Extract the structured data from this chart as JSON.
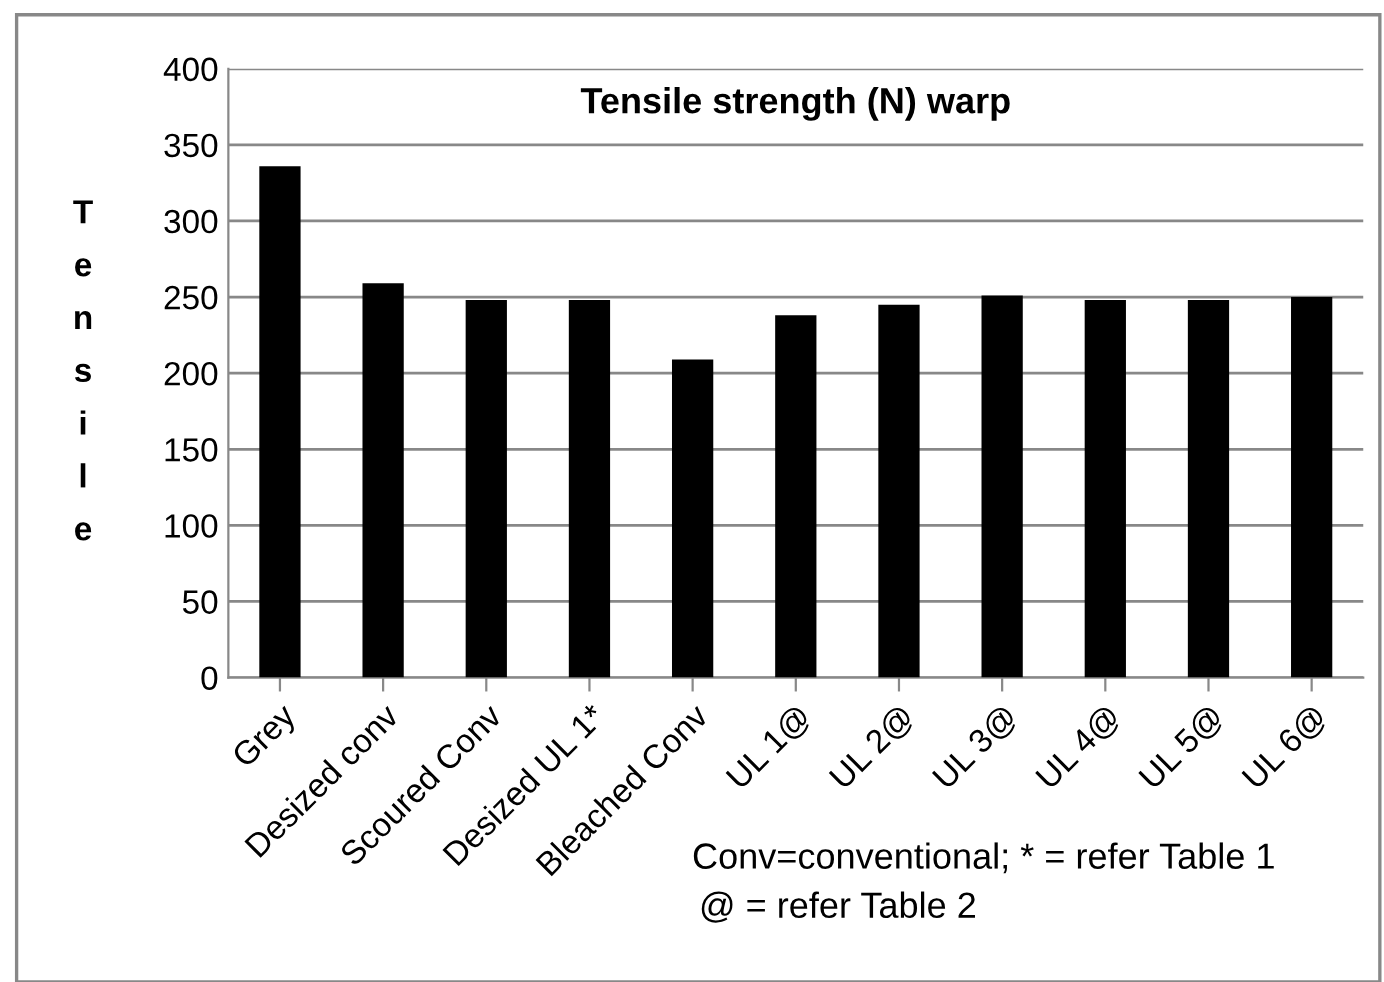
{
  "chart_data": {
    "type": "bar",
    "title": "Tensile strength (N) warp",
    "ylabel": "Tensile",
    "categories": [
      "Grey",
      "Desized conv",
      "Scoured Conv",
      "Desized UL 1*",
      "Bleached Conv",
      "UL 1@",
      "UL 2@",
      "UL 3@",
      "UL 4@",
      "UL 5@",
      "UL 6@"
    ],
    "values": [
      336,
      259,
      248,
      248,
      209,
      238,
      245,
      251,
      248,
      248,
      250
    ],
    "color": "#000000",
    "ylim": [
      0,
      400
    ],
    "yticks": [
      0,
      50,
      100,
      150,
      200,
      250,
      300,
      350,
      400
    ],
    "grid": "y",
    "annotations": [
      "Conv=conventional; * = refer Table 1",
      "@ = refer Table 2"
    ]
  }
}
